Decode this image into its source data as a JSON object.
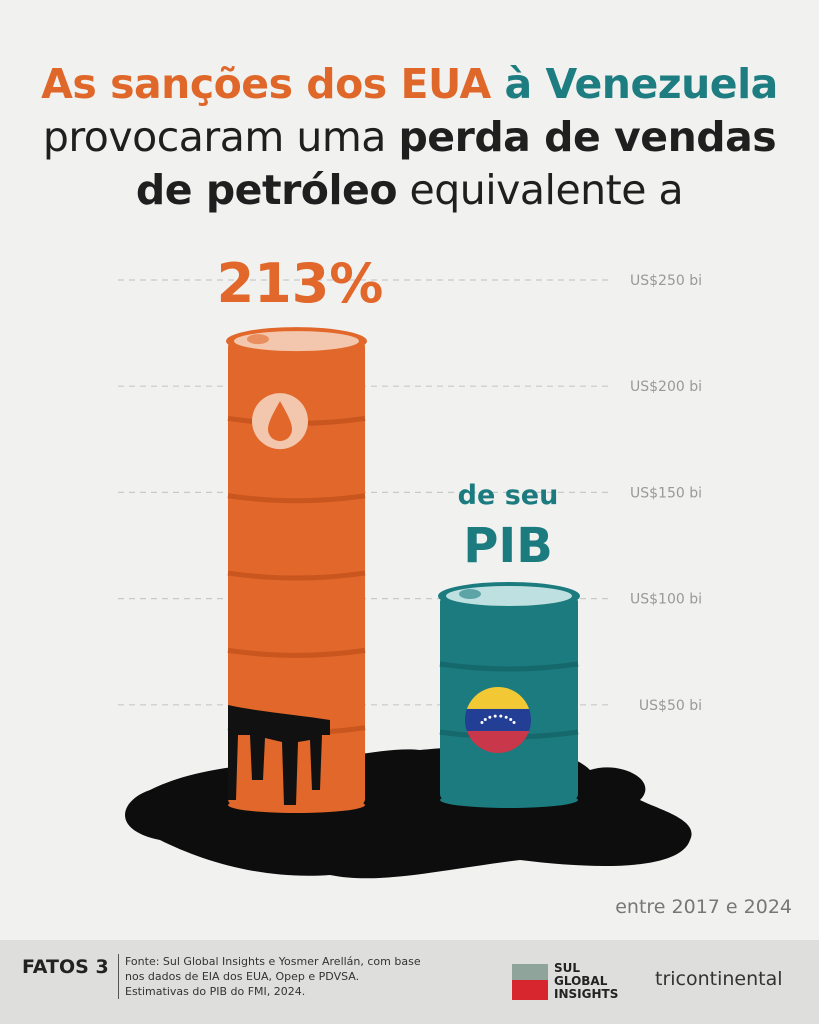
{
  "title": {
    "line1_part1": "As sanções dos EUA",
    "line1_part2": " à Venezuela",
    "line2_part1": "provocaram uma ",
    "line2_part2": "perda de vendas",
    "line3_part1": "de petróleo",
    "line3_part2": " equivalente a"
  },
  "chart_data": {
    "type": "bar",
    "categories": [
      "Perda de vendas de petróleo",
      "PIB"
    ],
    "values": [
      225,
      105
    ],
    "units": "US$ bi",
    "ylim": [
      0,
      250
    ],
    "yticks": [
      50,
      100,
      150,
      200,
      250
    ],
    "ytick_labels": [
      "US$50 bi",
      "US$100 bi",
      "US$150 bi",
      "US$200 bi",
      "US$250 bi"
    ],
    "grid": true,
    "annotations": {
      "percent": "213%",
      "pib_line1": "de seu",
      "pib_line2": "PIB",
      "period": "entre 2017 e 2024"
    },
    "colors": {
      "loss": "#e2672a",
      "gdp": "#1b7b7e",
      "oil": "#0d0d0d"
    },
    "icons": {
      "loss": "oil-drop-icon",
      "gdp": "venezuela-flag-icon"
    }
  },
  "footer": {
    "series_label": "FATOS 3",
    "source": "Fonte: Sul Global Insights e Yosmer Arellán, com base nos dados de EIA dos EUA, Opep e PDVSA. Estimativas do PIB do FMI, 2024.",
    "logo1": "SUL GLOBAL INSIGHTS",
    "logo2": "tricontinental"
  }
}
